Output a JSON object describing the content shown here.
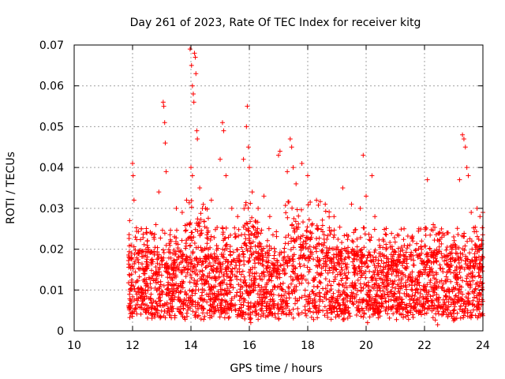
{
  "chart_data": {
    "type": "scatter",
    "title": "Day 261 of 2023, Rate Of TEC Index for receiver kitg",
    "xlabel": "GPS time / hours",
    "ylabel": "ROTI / TECUs",
    "xlim": [
      10,
      24
    ],
    "ylim": [
      0,
      0.07
    ],
    "x_ticks": [
      10,
      12,
      14,
      16,
      18,
      20,
      22,
      24
    ],
    "x_tick_labels": [
      "10",
      "12",
      "14",
      "16",
      "18",
      "20",
      "22",
      "24"
    ],
    "y_ticks": [
      0,
      0.01,
      0.02,
      0.03,
      0.04,
      0.05,
      0.06,
      0.07
    ],
    "y_tick_labels": [
      "0",
      "0.01",
      "0.02",
      "0.03",
      "0.04",
      "0.05",
      "0.06",
      "0.07"
    ],
    "grid": true,
    "marker": "+",
    "series": [
      {
        "name": "ROTI",
        "color": "#ff0000",
        "points": [
          [
            11.9,
            0.027
          ],
          [
            11.95,
            0.021
          ],
          [
            12.0,
            0.041
          ],
          [
            12.02,
            0.038
          ],
          [
            12.05,
            0.032
          ],
          [
            12.3,
            0.025
          ],
          [
            12.5,
            0.022
          ],
          [
            12.8,
            0.026
          ],
          [
            12.9,
            0.034
          ],
          [
            13.05,
            0.056
          ],
          [
            13.07,
            0.055
          ],
          [
            13.1,
            0.051
          ],
          [
            13.12,
            0.046
          ],
          [
            13.15,
            0.039
          ],
          [
            13.5,
            0.03
          ],
          [
            13.7,
            0.029
          ],
          [
            13.85,
            0.032
          ],
          [
            13.97,
            0.069
          ],
          [
            14.02,
            0.065
          ],
          [
            14.05,
            0.06
          ],
          [
            14.08,
            0.058
          ],
          [
            14.1,
            0.056
          ],
          [
            14.12,
            0.068
          ],
          [
            14.15,
            0.067
          ],
          [
            14.17,
            0.063
          ],
          [
            14.2,
            0.049
          ],
          [
            14.22,
            0.047
          ],
          [
            14.0,
            0.04
          ],
          [
            14.05,
            0.038
          ],
          [
            14.3,
            0.035
          ],
          [
            14.5,
            0.03
          ],
          [
            14.7,
            0.032
          ],
          [
            15.0,
            0.042
          ],
          [
            15.08,
            0.051
          ],
          [
            15.12,
            0.049
          ],
          [
            15.2,
            0.038
          ],
          [
            15.4,
            0.03
          ],
          [
            15.6,
            0.028
          ],
          [
            15.8,
            0.042
          ],
          [
            15.9,
            0.05
          ],
          [
            15.93,
            0.055
          ],
          [
            15.97,
            0.045
          ],
          [
            16.0,
            0.04
          ],
          [
            16.1,
            0.034
          ],
          [
            16.3,
            0.03
          ],
          [
            16.5,
            0.033
          ],
          [
            16.7,
            0.028
          ],
          [
            17.0,
            0.043
          ],
          [
            17.05,
            0.044
          ],
          [
            17.3,
            0.039
          ],
          [
            17.4,
            0.047
          ],
          [
            17.45,
            0.045
          ],
          [
            17.5,
            0.04
          ],
          [
            17.6,
            0.036
          ],
          [
            17.8,
            0.041
          ],
          [
            18.0,
            0.038
          ],
          [
            18.3,
            0.032
          ],
          [
            18.6,
            0.031
          ],
          [
            18.9,
            0.028
          ],
          [
            19.2,
            0.035
          ],
          [
            19.5,
            0.031
          ],
          [
            19.8,
            0.03
          ],
          [
            19.9,
            0.043
          ],
          [
            20.0,
            0.033
          ],
          [
            20.2,
            0.038
          ],
          [
            20.3,
            0.028
          ],
          [
            20.6,
            0.022
          ],
          [
            20.9,
            0.02
          ],
          [
            21.3,
            0.025
          ],
          [
            21.6,
            0.022
          ],
          [
            21.9,
            0.022
          ],
          [
            22.1,
            0.037
          ],
          [
            22.3,
            0.026
          ],
          [
            22.5,
            0.022
          ],
          [
            22.8,
            0.024
          ],
          [
            23.0,
            0.023
          ],
          [
            23.2,
            0.037
          ],
          [
            23.3,
            0.048
          ],
          [
            23.35,
            0.047
          ],
          [
            23.4,
            0.045
          ],
          [
            23.45,
            0.04
          ],
          [
            23.5,
            0.038
          ],
          [
            23.6,
            0.029
          ],
          [
            23.8,
            0.03
          ],
          [
            23.9,
            0.028
          ],
          [
            24.0,
            0.029
          ],
          [
            20.05,
            0.002
          ],
          [
            22.45,
            0.0015
          ],
          [
            23.0,
            0.0025
          ],
          [
            16.05,
            0.002
          ]
        ]
      }
    ],
    "dense_band": {
      "x_start": 11.85,
      "x_end": 24,
      "typical_low": 0.004,
      "typical_high": 0.02,
      "peak_regions": [
        [
          13.8,
          14.6
        ],
        [
          15.8,
          16.3
        ],
        [
          17.2,
          18.8
        ]
      ]
    }
  }
}
